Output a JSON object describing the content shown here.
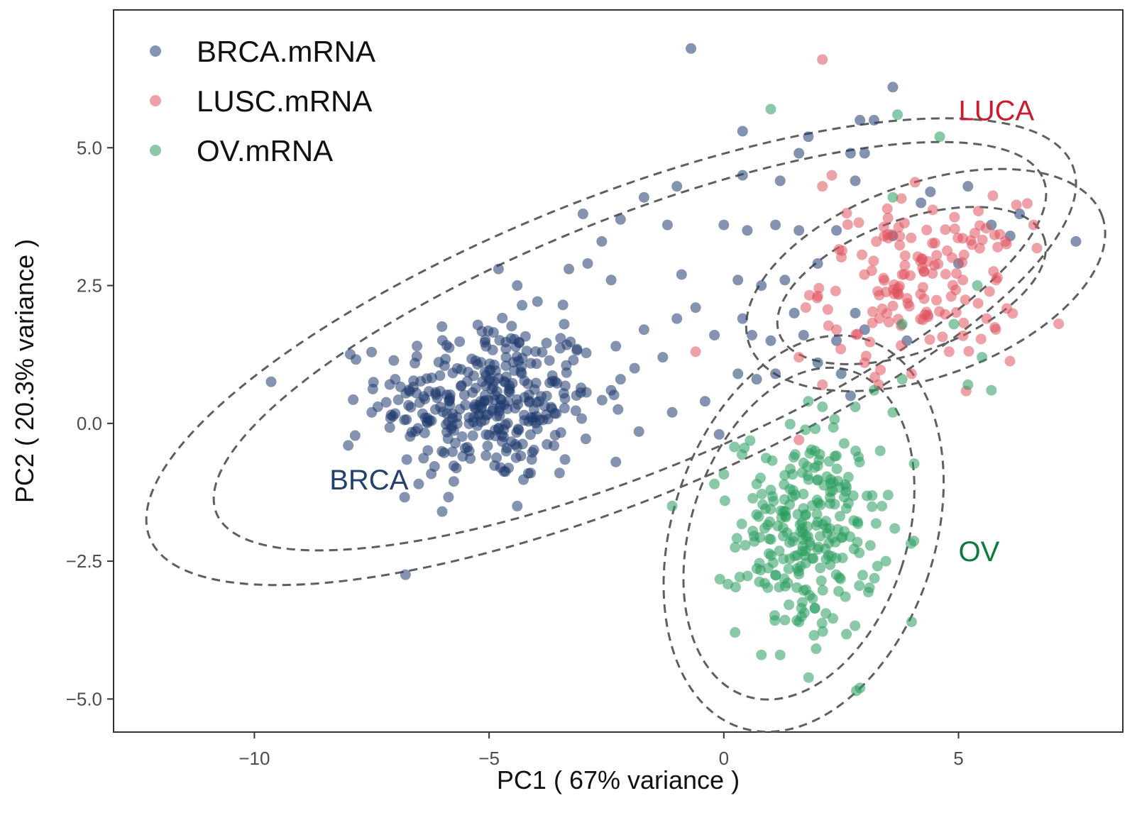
{
  "chart_data": {
    "type": "scatter",
    "title": "",
    "xlabel": "PC1 ( 67% variance )",
    "ylabel": "PC2 ( 20.3% variance )",
    "xlim": [
      -13.0,
      8.5
    ],
    "ylim": [
      -5.6,
      7.5
    ],
    "x_ticks": [
      -10,
      -5,
      0,
      5
    ],
    "x_tick_labels": [
      "−10",
      "−5",
      "0",
      "5"
    ],
    "y_ticks": [
      -5.0,
      -2.5,
      0.0,
      2.5,
      5.0
    ],
    "y_tick_labels": [
      "−5.0",
      "−2.5",
      "0.0",
      "2.5",
      "5.0"
    ],
    "grid": false,
    "legend_position": "top-left",
    "point_opacity": 0.55,
    "series": [
      {
        "name": "BRCA.mRNA",
        "color": "#1f3a6e",
        "cluster": {
          "mean": [
            -5.0,
            0.4
          ],
          "sd": [
            1.15,
            0.75
          ],
          "n": 330
        },
        "points": [
          [
            -0.7,
            6.8
          ],
          [
            3.6,
            6.1
          ],
          [
            2.9,
            5.5
          ],
          [
            3.2,
            5.5
          ],
          [
            0.4,
            5.3
          ],
          [
            1.8,
            5.2
          ],
          [
            1.6,
            4.9
          ],
          [
            3.0,
            4.9
          ],
          [
            0.4,
            4.5
          ],
          [
            1.2,
            4.4
          ],
          [
            -1.0,
            4.3
          ],
          [
            -1.7,
            4.1
          ],
          [
            -3.0,
            3.8
          ],
          [
            -2.2,
            3.7
          ],
          [
            -1.2,
            3.6
          ],
          [
            0.0,
            3.6
          ],
          [
            0.5,
            3.5
          ],
          [
            1.1,
            3.6
          ],
          [
            1.6,
            3.5
          ],
          [
            -2.6,
            3.3
          ],
          [
            -2.9,
            2.9
          ],
          [
            -0.9,
            2.7
          ],
          [
            0.3,
            2.6
          ],
          [
            0.8,
            2.5
          ],
          [
            1.3,
            2.6
          ],
          [
            -4.8,
            2.8
          ],
          [
            -4.4,
            2.5
          ],
          [
            -3.3,
            2.8
          ],
          [
            -2.4,
            2.6
          ],
          [
            -0.6,
            2.1
          ],
          [
            -1.0,
            1.9
          ],
          [
            0.4,
            1.9
          ],
          [
            -3.4,
            1.8
          ],
          [
            -1.7,
            1.7
          ],
          [
            -0.2,
            1.6
          ],
          [
            1.0,
            1.5
          ],
          [
            0.6,
            1.6
          ],
          [
            1.7,
            1.6
          ],
          [
            -2.3,
            1.4
          ],
          [
            -1.3,
            1.2
          ],
          [
            -1.9,
            1.0
          ],
          [
            -2.2,
            0.8
          ],
          [
            -2.4,
            0.6
          ],
          [
            0.3,
            0.9
          ],
          [
            0.7,
            0.8
          ],
          [
            -0.4,
            0.4
          ],
          [
            -7.0,
            0.8
          ],
          [
            -7.5,
            0.2
          ],
          [
            -8.0,
            -0.4
          ],
          [
            -6.5,
            -1.1
          ],
          [
            -2.3,
            -0.7
          ],
          [
            -3.5,
            -0.9
          ],
          [
            -4.4,
            -1.5
          ],
          [
            -6.0,
            -1.6
          ],
          [
            -1.1,
            0.2
          ],
          [
            -0.1,
            -0.2
          ],
          [
            2.7,
            4.9
          ],
          [
            5.2,
            4.3
          ],
          [
            5.7,
            3.6
          ],
          [
            6.3,
            3.8
          ],
          [
            4.2,
            4.0
          ],
          [
            3.6,
            3.4
          ],
          [
            6.1,
            3.4
          ],
          [
            5.0,
            2.9
          ],
          [
            7.5,
            3.3
          ],
          [
            2.8,
            2.0
          ],
          [
            2.4,
            1.5
          ],
          [
            3.0,
            1.7
          ],
          [
            1.5,
            2.0
          ],
          [
            2.0,
            1.1
          ],
          [
            2.5,
            0.9
          ],
          [
            1.1,
            0.9
          ],
          [
            2.7,
            0.5
          ],
          [
            3.9,
            1.5
          ],
          [
            2.4,
            3.5
          ],
          [
            2.8,
            4.4
          ],
          [
            4.4,
            4.2
          ],
          [
            2.0,
            2.9
          ]
        ]
      },
      {
        "name": "LUSC.mRNA",
        "color": "#e0535f",
        "cluster": {
          "mean": [
            4.2,
            2.6
          ],
          "sd": [
            1.05,
            0.7
          ],
          "n": 150
        },
        "points": [
          [
            2.1,
            6.6
          ],
          [
            2.3,
            4.5
          ],
          [
            2.1,
            4.3
          ],
          [
            -0.6,
            1.3
          ],
          [
            1.6,
            1.2
          ],
          [
            2.1,
            0.7
          ],
          [
            3.3,
            0.7
          ],
          [
            4.0,
            0.9
          ],
          [
            1.6,
            -0.3
          ],
          [
            4.8,
            1.3
          ],
          [
            6.6,
            3.6
          ],
          [
            6.0,
            3.3
          ],
          [
            5.8,
            2.6
          ],
          [
            2.4,
            1.7
          ],
          [
            3.0,
            1.1
          ]
        ]
      },
      {
        "name": "OV.mRNA",
        "color": "#2a9c5e",
        "cluster": {
          "mean": [
            1.8,
            -2.0
          ],
          "sd": [
            0.75,
            0.95
          ],
          "n": 250
        },
        "points": [
          [
            1.0,
            5.7
          ],
          [
            3.7,
            5.6
          ],
          [
            4.6,
            5.2
          ],
          [
            3.6,
            4.1
          ],
          [
            -1.1,
            -1.5
          ],
          [
            2.9,
            -4.8
          ],
          [
            0.8,
            -4.2
          ],
          [
            1.2,
            -4.2
          ],
          [
            4.0,
            -3.6
          ],
          [
            5.4,
            2.5
          ],
          [
            5.5,
            1.2
          ],
          [
            5.7,
            0.6
          ],
          [
            5.2,
            0.7
          ],
          [
            4.9,
            1.8
          ],
          [
            3.8,
            0.8
          ],
          [
            3.2,
            0.6
          ],
          [
            2.8,
            0.3
          ],
          [
            2.1,
            0.3
          ],
          [
            1.8,
            0.4
          ],
          [
            3.6,
            0.2
          ],
          [
            3.8,
            1.8
          ],
          [
            -0.2,
            -1.1
          ],
          [
            0.7,
            -1.1
          ],
          [
            3.5,
            -1.3
          ]
        ]
      }
    ],
    "ellipses": [
      {
        "group": "BRCA",
        "cx": -2.0,
        "cy": 1.4,
        "rx": 9.5,
        "ry": 2.3,
        "angle": 22
      },
      {
        "group": "BRCA",
        "cx": -2.4,
        "cy": 1.3,
        "rx": 10.6,
        "ry": 2.75,
        "angle": 22
      },
      {
        "group": "LUCA",
        "cx": 4.0,
        "cy": 2.5,
        "rx": 3.0,
        "ry": 1.2,
        "angle": 20
      },
      {
        "group": "LUCA",
        "cx": 4.3,
        "cy": 2.6,
        "rx": 4.0,
        "ry": 1.75,
        "angle": 20
      },
      {
        "group": "OV",
        "cx": 1.6,
        "cy": -2.0,
        "rx": 2.3,
        "ry": 3.1,
        "angle": -18
      },
      {
        "group": "OV",
        "cx": 1.7,
        "cy": -2.0,
        "rx": 2.8,
        "ry": 3.7,
        "angle": -18
      }
    ],
    "annotations": [
      {
        "text": "BRCA",
        "x": -8.4,
        "y": -1.2,
        "color": "#24416e"
      },
      {
        "text": "LUCA",
        "x": 5.0,
        "y": 5.5,
        "color": "#cc1b2d"
      },
      {
        "text": "OV",
        "x": 5.0,
        "y": -2.5,
        "color": "#0e7a3e"
      }
    ]
  }
}
